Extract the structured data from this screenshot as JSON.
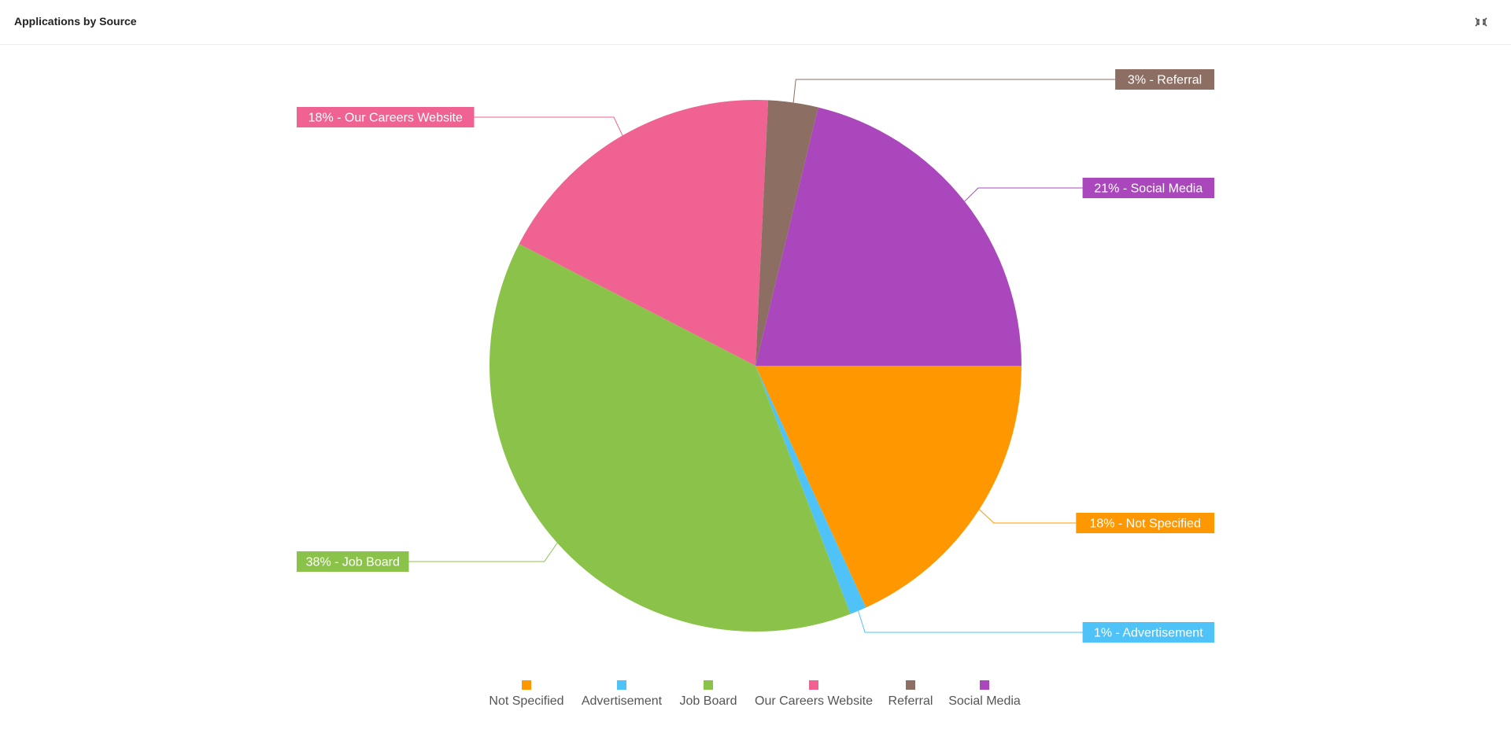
{
  "widget": {
    "title": "Applications by Source",
    "collapse_icon": "collapse-arrows-icon"
  },
  "chart_data": {
    "type": "pie",
    "categories": [
      "Not Specified",
      "Advertisement",
      "Job Board",
      "Our Careers Website",
      "Referral",
      "Social Media"
    ],
    "values": [
      18,
      1,
      38,
      18,
      3,
      21
    ],
    "unit": "%",
    "labels": [
      "18% - Not Specified",
      "1% - Advertisement",
      "38% - Job Board",
      "18% - Our Careers Website",
      "3% - Referral",
      "21% - Social Media"
    ],
    "colors": [
      "#ff9800",
      "#4fc3f7",
      "#8bc34a",
      "#f06292",
      "#8d6e63",
      "#ab47bc"
    ],
    "legend_position": "bottom",
    "start_angle": "3 o'clock",
    "direction": "clockwise"
  }
}
